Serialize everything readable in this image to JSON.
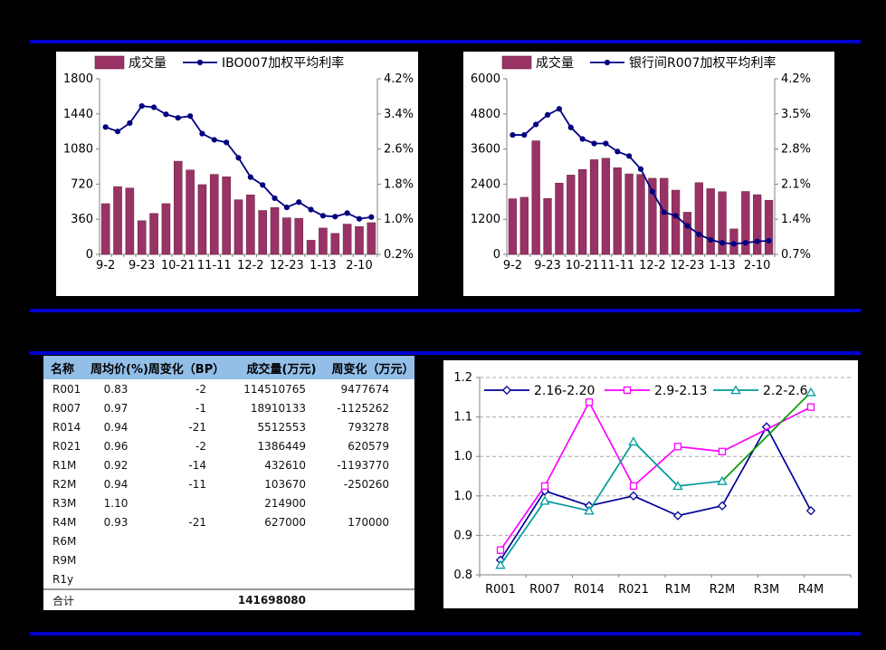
{
  "page": {
    "background": "#000000",
    "rule_color": "#0101CD"
  },
  "chart_data": [
    {
      "type": "bar",
      "name": "ibo007",
      "title": "",
      "legend": [
        "成交量",
        "IBO007加权平均利率"
      ],
      "legend_position": "top-inside",
      "bar_color": "#993366",
      "line_color": "#000080",
      "left_ticks": [
        "1800",
        "1440",
        "1080",
        "720",
        "360",
        "0"
      ],
      "left_max": 1800,
      "right_tick_labels": [
        "4.2%",
        "3.4%",
        "2.6%",
        "1.8%",
        "1.0%",
        "0.2%"
      ],
      "right_max": 4.2,
      "right_min": 0.2,
      "x_labels": [
        "9-2",
        "9-23",
        "10-21",
        "11-11",
        "12-2",
        "12-23",
        "1-13",
        "2-10"
      ],
      "x_label_indices": [
        0,
        3,
        6,
        9,
        12,
        15,
        18,
        21
      ],
      "bars": [
        520,
        695,
        680,
        345,
        420,
        520,
        955,
        865,
        715,
        820,
        795,
        560,
        610,
        450,
        480,
        375,
        370,
        145,
        270,
        215,
        310,
        285,
        325
      ],
      "line": [
        3.1,
        3.0,
        3.19,
        3.58,
        3.55,
        3.39,
        3.31,
        3.35,
        2.95,
        2.81,
        2.75,
        2.4,
        1.96,
        1.78,
        1.48,
        1.27,
        1.39,
        1.22,
        1.08,
        1.06,
        1.14,
        1.01,
        1.05
      ]
    },
    {
      "type": "bar",
      "name": "r007",
      "title": "",
      "legend": [
        "成交量",
        "银行间R007加权平均利率"
      ],
      "legend_position": "top-inside",
      "bar_color": "#993366",
      "line_color": "#000080",
      "left_ticks": [
        "6000",
        "4800",
        "3600",
        "2400",
        "1200",
        "0"
      ],
      "left_max": 6000,
      "right_tick_labels": [
        "4.2%",
        "3.5%",
        "2.8%",
        "2.1%",
        "1.4%",
        "0.7%"
      ],
      "right_max": 4.2,
      "right_min": 0.7,
      "x_labels": [
        "9-2",
        "9-23",
        "10-21",
        "11-11",
        "12-2",
        "12-23",
        "1-13",
        "2-10"
      ],
      "x_label_indices": [
        0,
        3,
        6,
        9,
        12,
        15,
        18,
        21
      ],
      "bars": [
        1900,
        1950,
        3880,
        1910,
        2435,
        2710,
        2900,
        3235,
        3285,
        2960,
        2750,
        2730,
        2600,
        2600,
        2195,
        1440,
        2450,
        2245,
        2140,
        870,
        2150,
        2040,
        1850
      ],
      "line": [
        3.08,
        3.08,
        3.29,
        3.48,
        3.6,
        3.23,
        3.0,
        2.91,
        2.91,
        2.75,
        2.66,
        2.4,
        1.95,
        1.54,
        1.47,
        1.27,
        1.1,
        0.99,
        0.93,
        0.91,
        0.93,
        0.96,
        0.97
      ]
    },
    {
      "type": "line",
      "name": "weekly-avg-price",
      "title": "",
      "categories": [
        "R001",
        "R007",
        "R014",
        "R021",
        "R1M",
        "R2M",
        "R3M",
        "R4M"
      ],
      "ylim": [
        0.8,
        1.2
      ],
      "y_tick_values": [
        0.8,
        0.88,
        0.96,
        1.04,
        1.12,
        1.2
      ],
      "y_tick_labels": [
        "0.8",
        "0.9",
        "1.0",
        "1.0",
        "1.1",
        "1.2"
      ],
      "grid": "dashed",
      "legend_position": "top-inside",
      "series": [
        {
          "name": "2.16-2.20",
          "color": "#000099",
          "marker": "diamond",
          "values": [
            0.83,
            0.97,
            0.94,
            0.96,
            0.92,
            0.94,
            1.1,
            0.93
          ]
        },
        {
          "name": "2.9-2.13",
          "color": "#FF00FF",
          "marker": "square",
          "values": [
            0.85,
            0.98,
            1.15,
            0.98,
            1.06,
            1.05,
            null,
            1.14
          ]
        },
        {
          "name": "2.2-2.6",
          "color": "#009999",
          "marker": "triangle",
          "values": [
            0.82,
            0.95,
            0.93,
            1.07,
            0.98,
            0.99,
            null,
            1.17
          ],
          "gap_segment_color": "#009900"
        }
      ]
    },
    {
      "type": "table",
      "name": "repo-weekly-table",
      "header_bg": "#92BEE8",
      "columns": [
        "名称",
        "周均价(%)",
        "周变化（BP）",
        "成交量(万元)",
        "周变化（万元）"
      ],
      "rows": [
        [
          "R001",
          "0.83",
          "-2",
          "114510765",
          "9477674"
        ],
        [
          "R007",
          "0.97",
          "-1",
          "18910133",
          "-1125262"
        ],
        [
          "R014",
          "0.94",
          "-21",
          "5512553",
          "793278"
        ],
        [
          "R021",
          "0.96",
          "-2",
          "1386449",
          "620579"
        ],
        [
          "R1M",
          "0.92",
          "-14",
          "432610",
          "-1193770"
        ],
        [
          "R2M",
          "0.94",
          "-11",
          "103670",
          "-250260"
        ],
        [
          "R3M",
          "1.10",
          "",
          "214900",
          ""
        ],
        [
          "R4M",
          "0.93",
          "-21",
          "627000",
          "170000"
        ],
        [
          "R6M",
          "",
          "",
          "",
          ""
        ],
        [
          "R9M",
          "",
          "",
          "",
          ""
        ],
        [
          "R1y",
          "",
          "",
          "",
          ""
        ]
      ],
      "footer": [
        "合计",
        "",
        "",
        "141698080",
        ""
      ]
    }
  ]
}
